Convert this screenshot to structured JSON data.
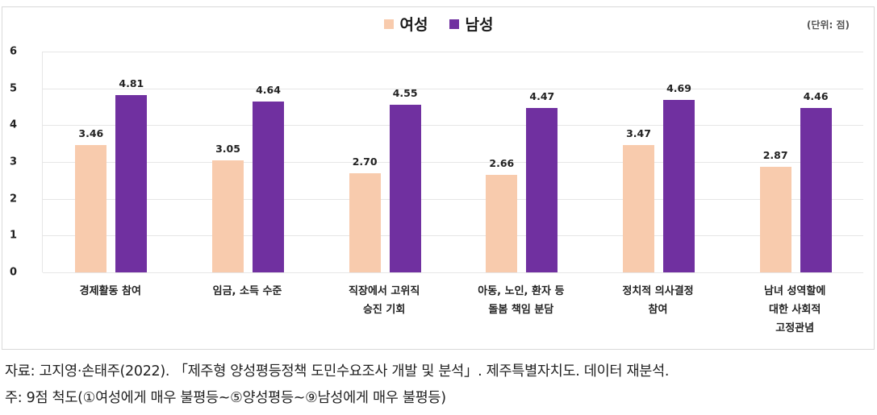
{
  "chart_data": {
    "type": "bar",
    "title": "",
    "unit_note": "(단위: 점)",
    "xlabel": "",
    "ylabel": "",
    "ylim": [
      0,
      6
    ],
    "yticks": [
      "0",
      "1",
      "2",
      "3",
      "4",
      "5",
      "6"
    ],
    "grid": true,
    "legend_position": "top-center",
    "categories": [
      "경제활동 참여",
      "임금, 소득 수준",
      "직장에서 고위직\n승진 기회",
      "아동, 노인, 환자 등\n돌봄 책임 분담",
      "정치적 의사결정\n참여",
      "남녀 성역할에\n대한 사회적\n고정관념"
    ],
    "series": [
      {
        "name": "여성",
        "color": "#F8CBAD",
        "values": [
          3.46,
          3.05,
          2.7,
          2.66,
          3.47,
          2.87
        ],
        "labels": [
          "3.46",
          "3.05",
          "2.70",
          "2.66",
          "3.47",
          "2.87"
        ]
      },
      {
        "name": "남성",
        "color": "#7030A0",
        "values": [
          4.81,
          4.64,
          4.55,
          4.47,
          4.69,
          4.46
        ],
        "labels": [
          "4.81",
          "4.64",
          "4.55",
          "4.47",
          "4.69",
          "4.46"
        ]
      }
    ]
  },
  "legend": {
    "female_label": "여성",
    "male_label": "남성"
  },
  "unit_label": "(단위: 점)",
  "footer": {
    "source": "자료: 고지영·손태주(2022). 「제주형 양성평등정책 도민수요조사 개발 및 분석」. 제주특별자치도. 데이터 재분석.",
    "note": "주: 9점 척도(①여성에게 매우 불평등~⑤양성평등~⑨남성에게 매우 불평등)"
  }
}
